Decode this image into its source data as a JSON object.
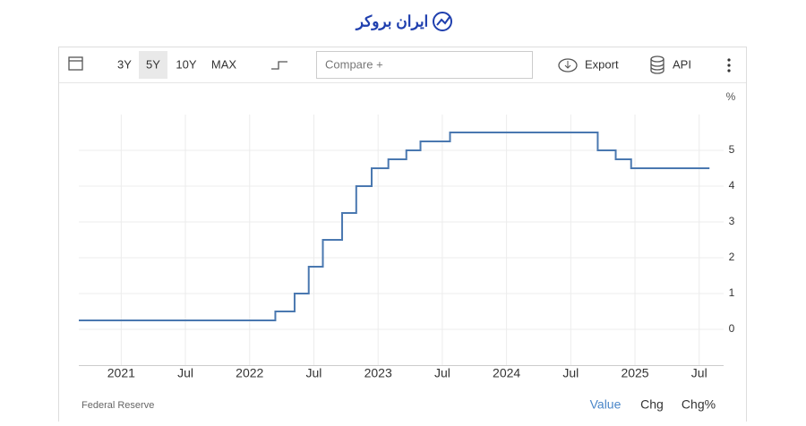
{
  "header": {
    "logo": "ایران بروکر"
  },
  "toolbar": {
    "ranges": [
      "3Y",
      "5Y",
      "10Y",
      "MAX"
    ],
    "compare": "Compare +",
    "export": "Export",
    "api": "API"
  },
  "footer": {
    "source": "Federal Reserve",
    "tabs": [
      "Value",
      "Chg",
      "Chg%"
    ]
  },
  "chart_data": {
    "type": "line",
    "step": true,
    "color": "#4a78b0",
    "grid": true,
    "unit": "%",
    "x": [
      2020.67,
      2022.2,
      2022.35,
      2022.46,
      2022.57,
      2022.72,
      2022.83,
      2022.95,
      2023.08,
      2023.22,
      2023.33,
      2023.56,
      2024.71,
      2024.85,
      2024.97,
      2025.58
    ],
    "values": [
      0.25,
      0.5,
      1.0,
      1.75,
      2.5,
      3.25,
      4.0,
      4.5,
      4.75,
      5.0,
      5.25,
      5.5,
      5.0,
      4.75,
      4.5,
      4.5
    ],
    "xlim": [
      2020.67,
      2025.69
    ],
    "xticks": [
      {
        "value": 2021,
        "label": "2021"
      },
      {
        "value": 2021.5,
        "label": "Jul"
      },
      {
        "value": 2022,
        "label": "2022"
      },
      {
        "value": 2022.5,
        "label": "Jul"
      },
      {
        "value": 2023,
        "label": "2023"
      },
      {
        "value": 2023.5,
        "label": "Jul"
      },
      {
        "value": 2024,
        "label": "2024"
      },
      {
        "value": 2024.5,
        "label": "Jul"
      },
      {
        "value": 2025,
        "label": "2025"
      },
      {
        "value": 2025.5,
        "label": "Jul"
      }
    ],
    "ylim": [
      -1,
      6
    ],
    "yticks": [
      0,
      1,
      2,
      3,
      4,
      5
    ]
  }
}
